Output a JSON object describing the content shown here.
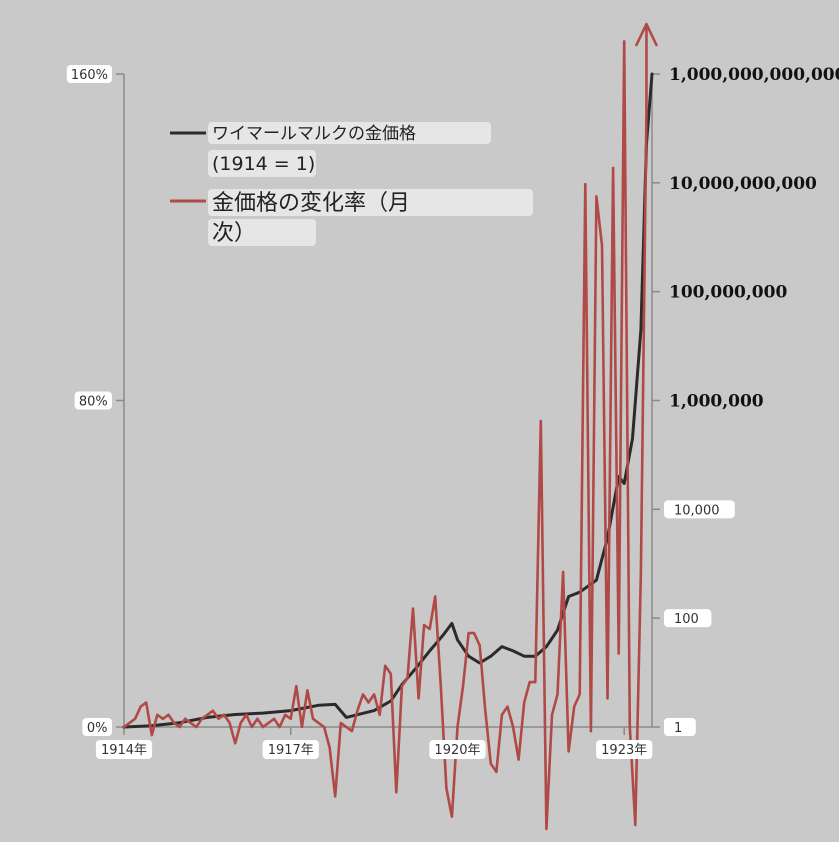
{
  "chart_data": {
    "type": "line",
    "colors": {
      "gold_price": "#2b2b2b",
      "change_rate": "#b04a46",
      "axis": "#8a8a8a",
      "background": "#c9c9c9"
    },
    "x_axis": {
      "range": [
        1914.0,
        1923.5
      ],
      "ticks": [
        {
          "value": 1914,
          "label": "1914年"
        },
        {
          "value": 1917,
          "label": "1917年"
        },
        {
          "value": 1920,
          "label": "1920年"
        },
        {
          "value": 1923,
          "label": "1923年"
        }
      ]
    },
    "left_axis": {
      "range": [
        0,
        160
      ],
      "ticks": [
        {
          "value": 0,
          "label": "0%"
        },
        {
          "value": 80,
          "label": "80%"
        },
        {
          "value": 160,
          "label": "160%"
        }
      ]
    },
    "right_axis": {
      "scale": "log",
      "range": [
        1,
        1000000000000
      ],
      "ticks": [
        {
          "value": 1,
          "label": "1",
          "pill": true
        },
        {
          "value": 100,
          "label": "100",
          "pill": true
        },
        {
          "value": 10000,
          "label": "10,000",
          "pill": true
        },
        {
          "value": 1000000,
          "label": "1,000,000",
          "pill": false
        },
        {
          "value": 100000000,
          "label": "100,000,000",
          "pill": false
        },
        {
          "value": 10000000000,
          "label": "10,000,000,000",
          "pill": false
        },
        {
          "value": 1000000000000,
          "label": "1,000,000,000,000",
          "pill": false
        }
      ]
    },
    "legend": {
      "placement": "top-left",
      "entries": [
        {
          "series": "gold_price",
          "lines": [
            "ワイマールマルクの金価格",
            "(1914 = 1)"
          ]
        },
        {
          "series": "change_rate",
          "lines": [
            "金価格の変化率（月",
            "次）"
          ]
        }
      ]
    },
    "series": [
      {
        "key": "gold_price",
        "axis": "right",
        "x": [
          1914.0,
          1914.5,
          1915.0,
          1915.5,
          1916.0,
          1916.5,
          1917.0,
          1917.5,
          1917.8,
          1918.0,
          1918.5,
          1918.8,
          1919.0,
          1919.25,
          1919.5,
          1919.75,
          1919.9,
          1920.0,
          1920.2,
          1920.4,
          1920.6,
          1920.8,
          1921.0,
          1921.2,
          1921.4,
          1921.6,
          1921.8,
          1922.0,
          1922.2,
          1922.5,
          1922.7,
          1922.9,
          1923.0,
          1923.15,
          1923.3,
          1923.4,
          1923.5
        ],
        "y": [
          1,
          1.05,
          1.2,
          1.5,
          1.7,
          1.8,
          2.0,
          2.5,
          2.6,
          1.5,
          2.0,
          3.0,
          6.0,
          12,
          25,
          50,
          80,
          40,
          20,
          15,
          20,
          30,
          25,
          20,
          20,
          30,
          60,
          250,
          300,
          500,
          3000,
          40000,
          30000,
          200000,
          20000000,
          50000000000,
          1000000000000
        ]
      },
      {
        "key": "change_rate",
        "axis": "left",
        "x": [
          1914.0,
          1914.2,
          1914.3,
          1914.4,
          1914.5,
          1914.6,
          1914.7,
          1914.8,
          1914.9,
          1915.0,
          1915.1,
          1915.2,
          1915.3,
          1915.4,
          1915.5,
          1915.6,
          1915.7,
          1915.8,
          1915.9,
          1916.0,
          1916.1,
          1916.2,
          1916.3,
          1916.4,
          1916.5,
          1916.6,
          1916.7,
          1916.8,
          1916.9,
          1917.0,
          1917.1,
          1917.2,
          1917.3,
          1917.4,
          1917.5,
          1917.6,
          1917.7,
          1917.8,
          1917.9,
          1918.0,
          1918.1,
          1918.2,
          1918.3,
          1918.4,
          1918.5,
          1918.6,
          1918.7,
          1918.8,
          1918.9,
          1919.0,
          1919.1,
          1919.2,
          1919.3,
          1919.4,
          1919.5,
          1919.6,
          1919.7,
          1919.8,
          1919.9,
          1920.0,
          1920.1,
          1920.2,
          1920.3,
          1920.4,
          1920.5,
          1920.6,
          1920.7,
          1920.8,
          1920.9,
          1921.0,
          1921.1,
          1921.2,
          1921.3,
          1921.4,
          1921.5,
          1921.6,
          1921.7,
          1921.8,
          1921.9,
          1922.0,
          1922.1,
          1922.2,
          1922.3,
          1922.4,
          1922.5,
          1922.6,
          1922.7,
          1922.8,
          1922.9,
          1923.0,
          1923.1,
          1923.2,
          1923.3,
          1923.4
        ],
        "y": [
          0,
          2,
          5,
          6,
          -2,
          3,
          2,
          3,
          1,
          0,
          2,
          1,
          0,
          2,
          3,
          4,
          2,
          3,
          1,
          -4,
          1,
          3,
          0,
          2,
          0,
          1,
          2,
          0,
          3,
          2,
          10,
          0,
          9,
          2,
          1,
          0,
          -5,
          -17,
          1,
          0,
          -1,
          4,
          8,
          6,
          8,
          3,
          15,
          13,
          -16,
          10,
          12,
          29,
          7,
          25,
          24,
          32,
          10,
          -15,
          -22,
          0,
          10,
          23,
          23,
          20,
          4,
          -9,
          -11,
          3,
          5,
          0,
          -8,
          6,
          11,
          11,
          75,
          -25,
          3,
          8,
          38,
          -6,
          5,
          8,
          133,
          -1,
          130,
          118,
          7,
          137,
          18,
          168,
          0,
          -24,
          38,
          150
        ]
      }
    ]
  }
}
